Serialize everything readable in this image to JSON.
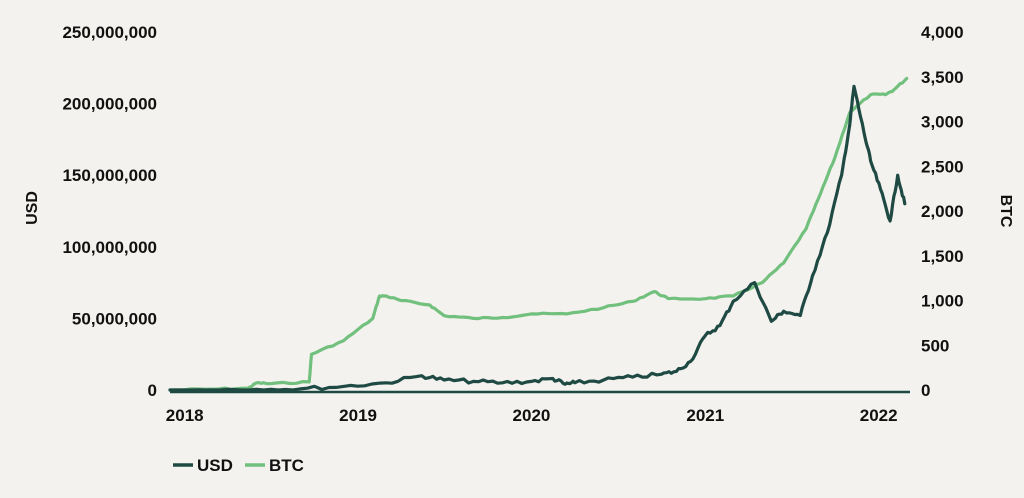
{
  "chart_data": {
    "type": "line",
    "title": "",
    "xlabel": "",
    "ylabel_left": "USD",
    "ylabel_right": "BTC",
    "x_ticks": [
      "2018",
      "2019",
      "2020",
      "2021",
      "2022"
    ],
    "ylim_left": [
      0,
      250000000
    ],
    "ylim_right": [
      0,
      4000
    ],
    "y_ticks_left": [
      "0",
      "50,000,000",
      "100,000,000",
      "150,000,000",
      "200,000,000",
      "250,000,000"
    ],
    "y_ticks_right": [
      "0",
      "500",
      "1,000",
      "1,500",
      "2,000",
      "2,500",
      "3,000",
      "3,500",
      "4,000"
    ],
    "grid": false,
    "legend_position": "bottom-left",
    "colors": {
      "USD": "#1f4a44",
      "BTC": "#72c07e",
      "axis": "#1f4a44"
    },
    "series": [
      {
        "name": "USD",
        "axis": "left",
        "points": [
          [
            "2017-12-01",
            0
          ],
          [
            "2018-03-01",
            0
          ],
          [
            "2018-06-01",
            500000
          ],
          [
            "2018-09-01",
            800000
          ],
          [
            "2018-12-01",
            2500000
          ],
          [
            "2019-03-01",
            5000000
          ],
          [
            "2019-05-15",
            10000000
          ],
          [
            "2019-07-01",
            7000000
          ],
          [
            "2019-09-01",
            6000000
          ],
          [
            "2019-11-01",
            5000000
          ],
          [
            "2020-01-01",
            6000000
          ],
          [
            "2020-02-15",
            8000000
          ],
          [
            "2020-03-12",
            4000000
          ],
          [
            "2020-04-01",
            5000000
          ],
          [
            "2020-06-01",
            7000000
          ],
          [
            "2020-08-01",
            9000000
          ],
          [
            "2020-10-01",
            11000000
          ],
          [
            "2020-11-01",
            13000000
          ],
          [
            "2020-12-01",
            20000000
          ],
          [
            "2021-01-01",
            38000000
          ],
          [
            "2021-02-01",
            45000000
          ],
          [
            "2021-03-01",
            62000000
          ],
          [
            "2021-04-15",
            75000000
          ],
          [
            "2021-05-20",
            48000000
          ],
          [
            "2021-06-15",
            55000000
          ],
          [
            "2021-07-20",
            52000000
          ],
          [
            "2021-08-15",
            80000000
          ],
          [
            "2021-09-15",
            110000000
          ],
          [
            "2021-10-15",
            150000000
          ],
          [
            "2021-11-01",
            185000000
          ],
          [
            "2021-11-10",
            212000000
          ],
          [
            "2021-12-01",
            180000000
          ],
          [
            "2021-12-15",
            160000000
          ],
          [
            "2022-01-05",
            140000000
          ],
          [
            "2022-01-25",
            118000000
          ],
          [
            "2022-02-10",
            150000000
          ],
          [
            "2022-02-25",
            130000000
          ]
        ]
      },
      {
        "name": "BTC",
        "axis": "right",
        "points": [
          [
            "2017-12-01",
            0
          ],
          [
            "2018-03-01",
            10
          ],
          [
            "2018-05-15",
            20
          ],
          [
            "2018-06-01",
            80
          ],
          [
            "2018-07-01",
            70
          ],
          [
            "2018-09-20",
            90
          ],
          [
            "2018-09-25",
            400
          ],
          [
            "2018-12-01",
            550
          ],
          [
            "2019-02-01",
            800
          ],
          [
            "2019-02-15",
            1050
          ],
          [
            "2019-03-01",
            1050
          ],
          [
            "2019-04-01",
            1000
          ],
          [
            "2019-06-01",
            950
          ],
          [
            "2019-07-01",
            830
          ],
          [
            "2019-09-01",
            800
          ],
          [
            "2019-11-01",
            810
          ],
          [
            "2020-01-01",
            850
          ],
          [
            "2020-03-15",
            850
          ],
          [
            "2020-06-01",
            920
          ],
          [
            "2020-08-01",
            990
          ],
          [
            "2020-09-15",
            1100
          ],
          [
            "2020-10-15",
            1020
          ],
          [
            "2021-01-01",
            1020
          ],
          [
            "2021-03-01",
            1050
          ],
          [
            "2021-05-01",
            1200
          ],
          [
            "2021-06-15",
            1420
          ],
          [
            "2021-08-01",
            1800
          ],
          [
            "2021-09-01",
            2200
          ],
          [
            "2021-10-01",
            2600
          ],
          [
            "2021-11-01",
            3100
          ],
          [
            "2021-12-15",
            3300
          ],
          [
            "2022-01-15",
            3300
          ],
          [
            "2022-02-01",
            3350
          ],
          [
            "2022-03-01",
            3480
          ]
        ]
      }
    ]
  }
}
